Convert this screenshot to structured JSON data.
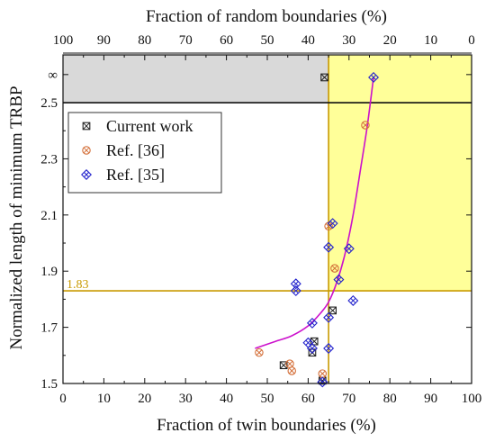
{
  "chart_data": {
    "type": "scatter",
    "xlabel": "Fraction of twin boundaries (%)",
    "x2label": "Fraction of random boundaries (%)",
    "ylabel": "Normalized length of minimum TRBP",
    "xlim": [
      0,
      100
    ],
    "x2lim": [
      100,
      0
    ],
    "ylim": [
      1.5,
      2.67
    ],
    "x_ticks": [
      0,
      10,
      20,
      30,
      40,
      50,
      60,
      70,
      80,
      90,
      100
    ],
    "x_tick_labels": [
      "0",
      "10",
      "20",
      "30",
      "40",
      "50",
      "60",
      "70",
      "80",
      "90",
      "100"
    ],
    "x2_ticks": [
      100,
      90,
      80,
      70,
      60,
      50,
      40,
      30,
      20,
      10,
      0
    ],
    "x2_tick_labels": [
      "100",
      "90",
      "80",
      "70",
      "60",
      "50",
      "40",
      "30",
      "20",
      "10",
      "0"
    ],
    "y_ticks": [
      1.5,
      1.7,
      1.9,
      2.1,
      2.3,
      2.5,
      2.6
    ],
    "y_tick_labels": [
      "1.5",
      "1.7",
      "1.9",
      "2.1",
      "2.3",
      "2.5",
      "∞"
    ],
    "grid": false,
    "legend_position": "upper-left",
    "series": [
      {
        "name": "Current work",
        "marker": "square-x",
        "color": "#222222",
        "x": [
          64,
          61.5,
          61,
          66,
          63.5,
          54
        ],
        "y": [
          2.59,
          1.65,
          1.61,
          1.76,
          1.51,
          1.565
        ]
      },
      {
        "name": "Ref. [36]",
        "marker": "circle-x",
        "color": "#d4703a",
        "x": [
          74,
          65,
          66.5,
          48,
          55.5,
          56,
          63.5
        ],
        "y": [
          2.42,
          2.06,
          1.91,
          1.61,
          1.57,
          1.545,
          1.535
        ]
      },
      {
        "name": "Ref. [35]",
        "marker": "diamond-x",
        "color": "#2222cc",
        "x": [
          76,
          66,
          65,
          70,
          67.5,
          57,
          57,
          71,
          61,
          60,
          61,
          65,
          65,
          63.5
        ],
        "y": [
          2.59,
          2.07,
          1.985,
          1.98,
          1.87,
          1.855,
          1.83,
          1.795,
          1.715,
          1.645,
          1.625,
          1.735,
          1.625,
          1.505
        ]
      }
    ],
    "fit_curve": {
      "color": "#cc11cc",
      "x": [
        47,
        52,
        56,
        60,
        63,
        65,
        67,
        69,
        71,
        73,
        74.5,
        76
      ],
      "y": [
        1.625,
        1.65,
        1.67,
        1.705,
        1.75,
        1.79,
        1.86,
        1.96,
        2.1,
        2.28,
        2.42,
        2.59
      ]
    },
    "regions": [
      {
        "name": "gray",
        "color": "#d9d9d9",
        "x": [
          0,
          65
        ],
        "y": [
          2.5,
          2.67
        ]
      },
      {
        "name": "yellow",
        "color": "#ffff99",
        "x": [
          65,
          100
        ],
        "y": [
          1.83,
          2.67
        ]
      }
    ],
    "reference_lines": {
      "vertical_x": 65,
      "vertical_color": "#c89a00",
      "horizontal_y": 1.83,
      "horizontal_label": "1.83",
      "horizontal_color": "#c89a00",
      "black_horizontal_y": 2.5
    }
  }
}
